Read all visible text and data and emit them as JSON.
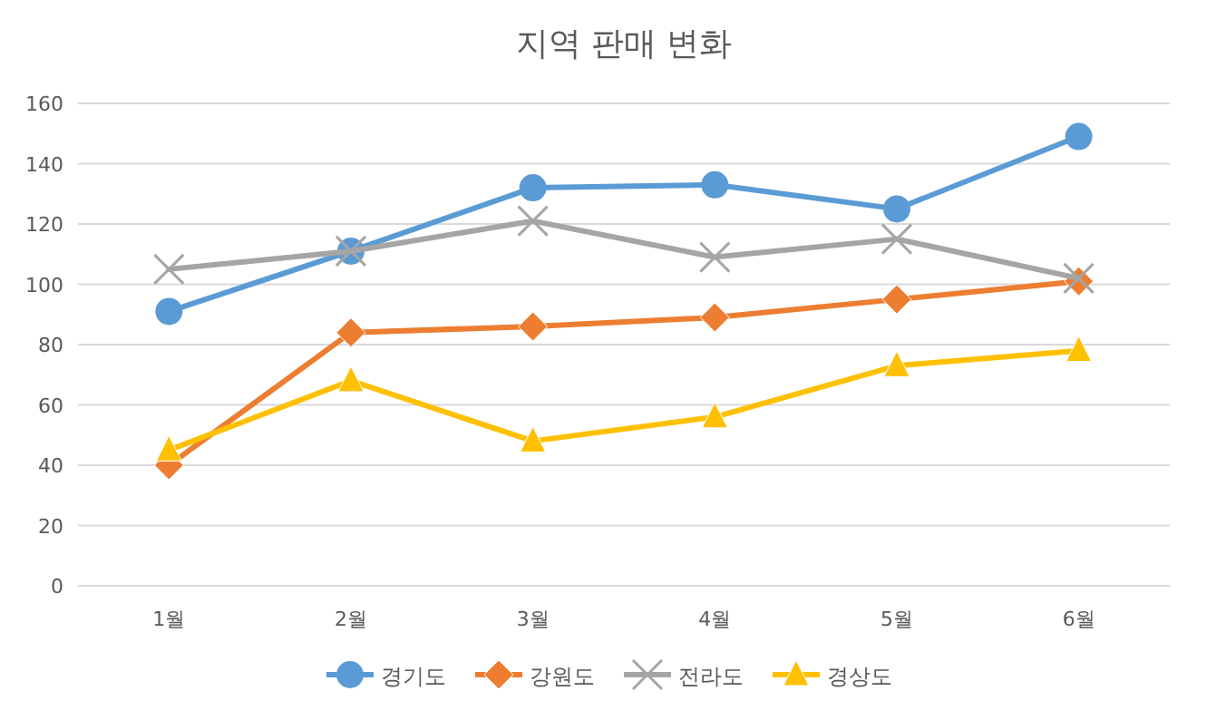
{
  "chart_data": {
    "type": "line",
    "title": "지역 판매 변화",
    "categories": [
      "1월",
      "2월",
      "3월",
      "4월",
      "5월",
      "6월"
    ],
    "series": [
      {
        "name": "경기도",
        "color": "#5b9bd5",
        "marker": "circle",
        "values": [
          91,
          111,
          132,
          133,
          125,
          149
        ]
      },
      {
        "name": "강원도",
        "color": "#ed7d31",
        "marker": "diamond",
        "values": [
          40,
          84,
          86,
          89,
          95,
          101
        ]
      },
      {
        "name": "전라도",
        "color": "#a5a5a5",
        "marker": "cross",
        "values": [
          105,
          111,
          121,
          109,
          115,
          102
        ]
      },
      {
        "name": "경상도",
        "color": "#ffc000",
        "marker": "triangle",
        "values": [
          45,
          68,
          48,
          56,
          73,
          78
        ]
      }
    ],
    "ylim": [
      0,
      160
    ],
    "yticks": [
      0,
      20,
      40,
      60,
      80,
      100,
      120,
      140,
      160
    ],
    "grid": "y",
    "legend": "bottom"
  }
}
